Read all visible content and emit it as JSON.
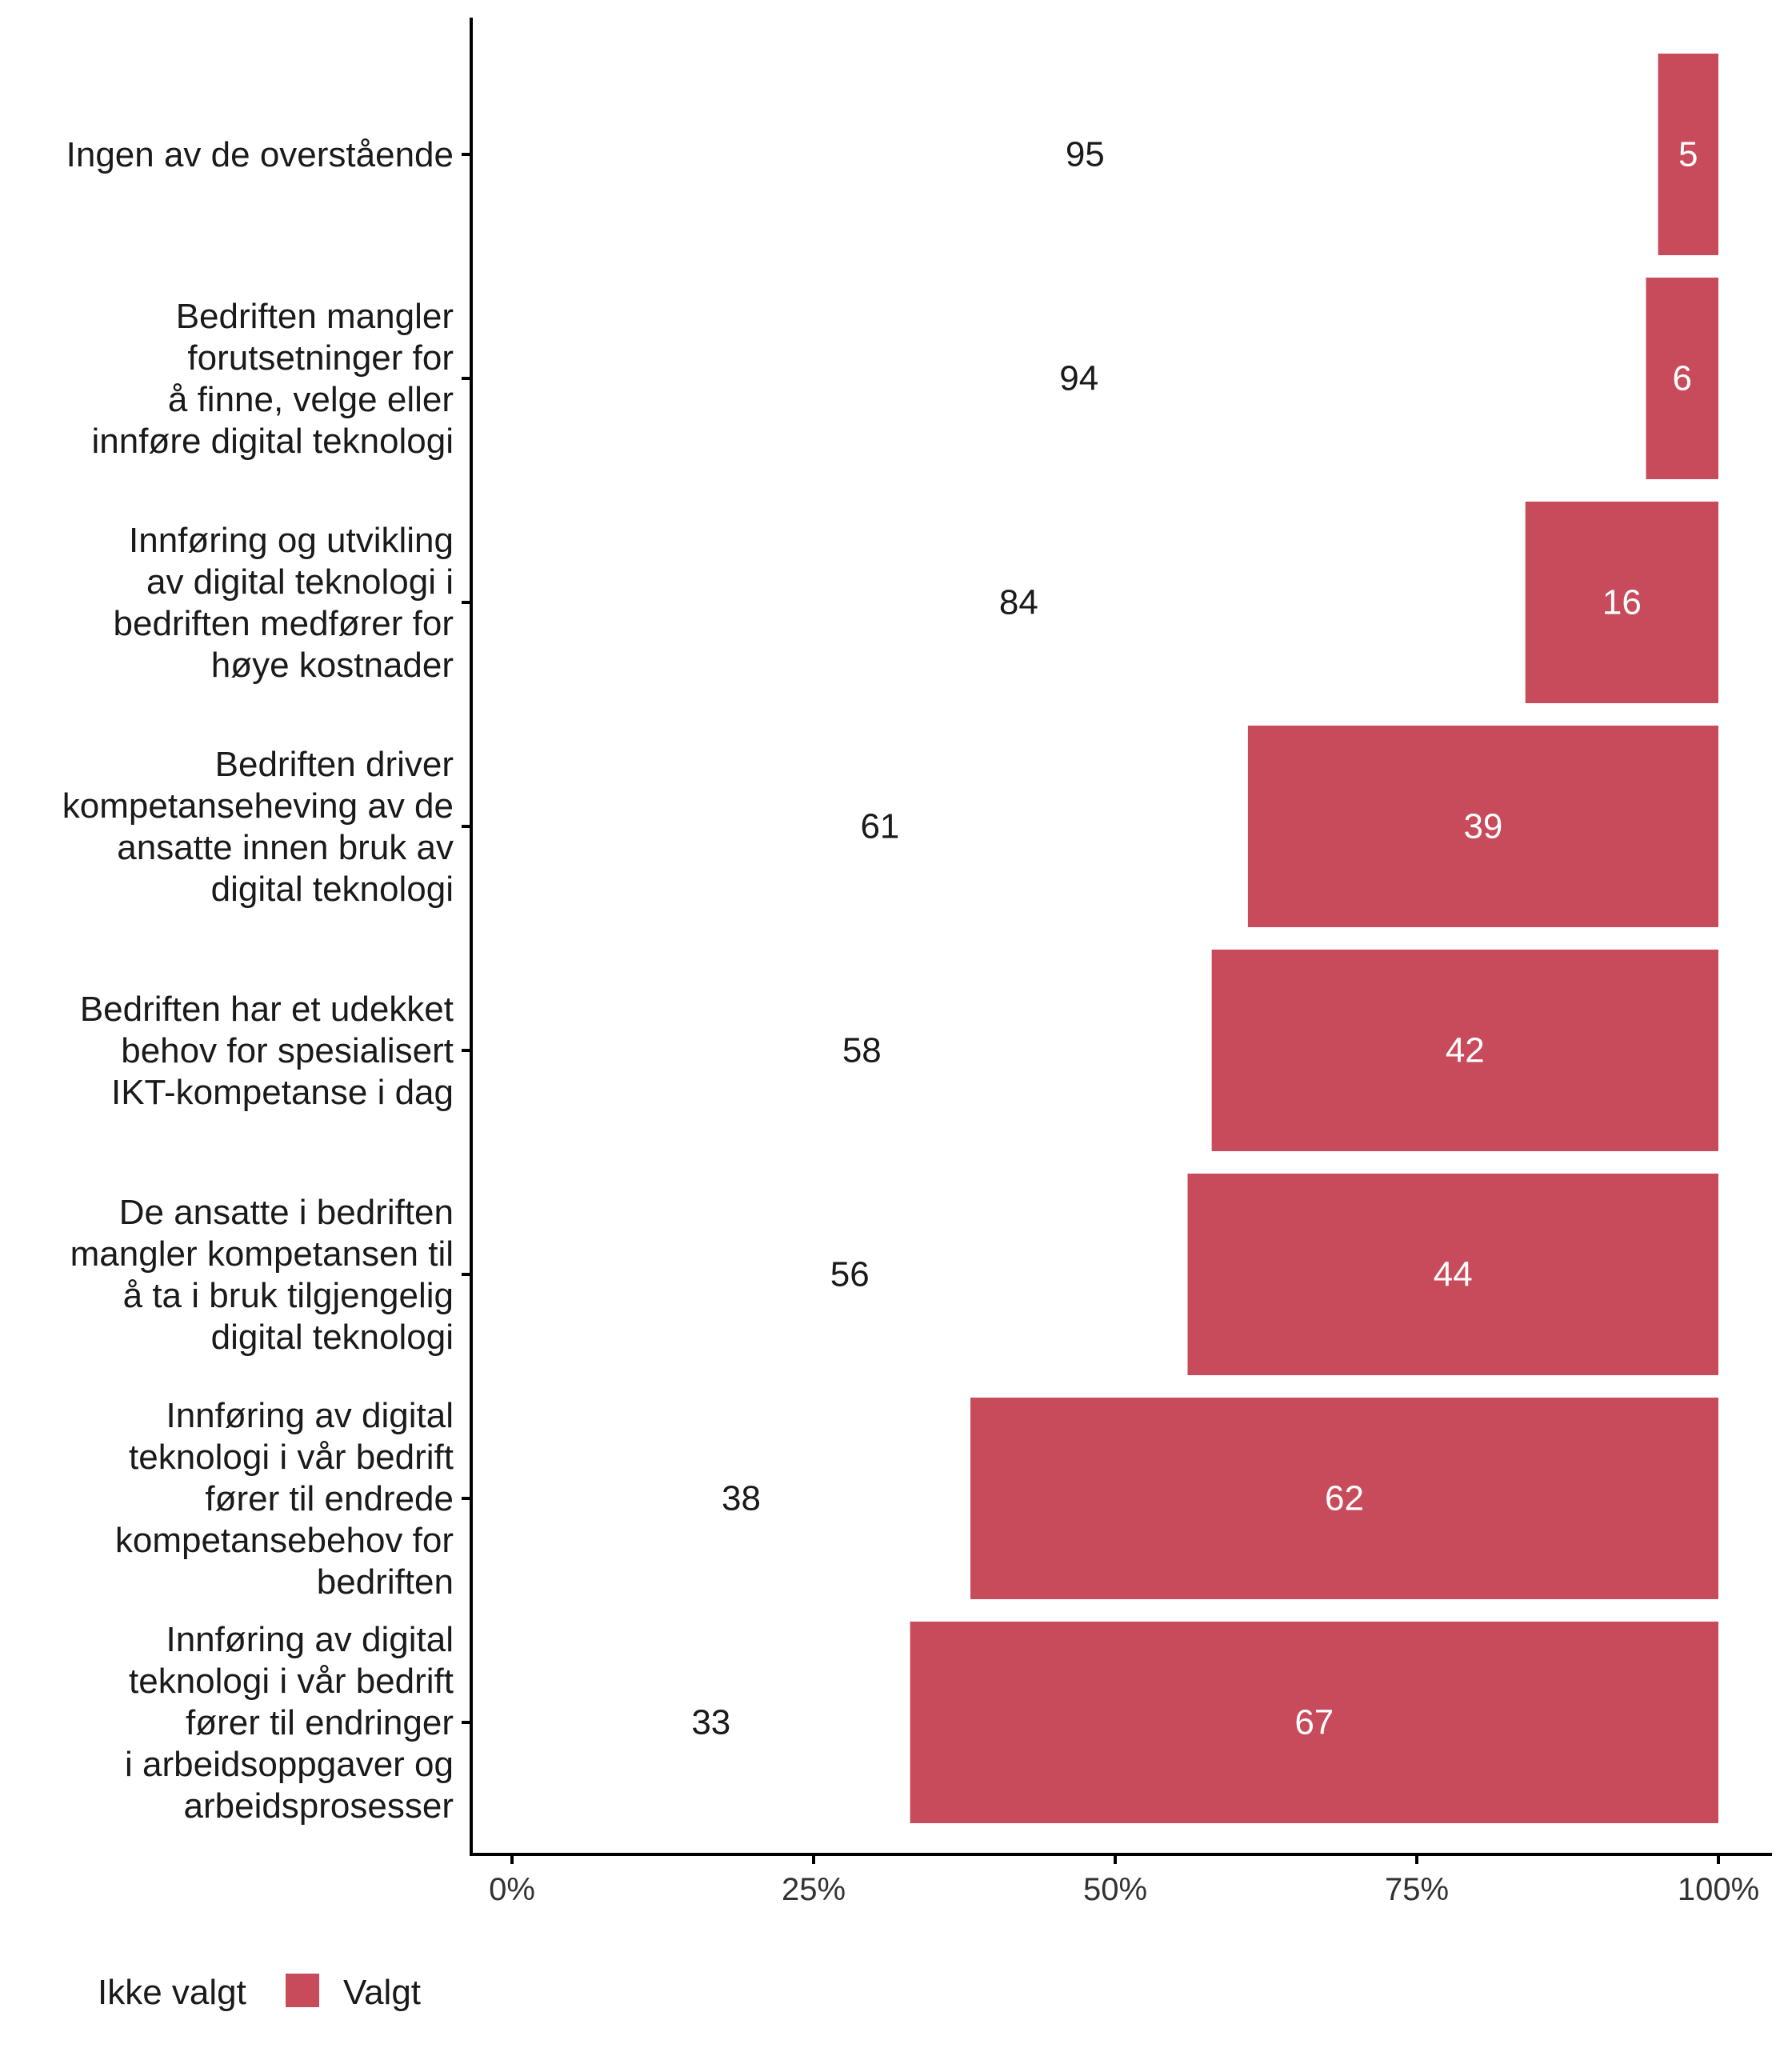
{
  "chart_data": {
    "type": "bar",
    "orientation": "horizontal",
    "stacked": true,
    "normalized": true,
    "categories": [
      [
        "Ingen av de overstående"
      ],
      [
        "Bedriften mangler",
        "forutsetninger for",
        "å finne, velge eller",
        "innføre digital teknologi"
      ],
      [
        "Innføring og utvikling",
        "av digital teknologi i",
        "bedriften medfører for",
        "høye kostnader"
      ],
      [
        "Bedriften driver",
        "kompetanseheving av de",
        "ansatte innen bruk av",
        "digital teknologi"
      ],
      [
        "Bedriften har et udekket",
        "behov for spesialisert",
        "IKT-kompetanse i dag"
      ],
      [
        "De ansatte i bedriften",
        "mangler kompetansen til",
        "å ta i bruk tilgjengelig",
        "digital teknologi"
      ],
      [
        "Innføring av digital",
        "teknologi i vår bedrift",
        "fører til endrede",
        "kompetansebehov for",
        "bedriften"
      ],
      [
        "Innføring av digital",
        "teknologi i vår bedrift",
        "fører til endringer",
        "i arbeidsoppgaver og",
        "arbeidsprosesser"
      ]
    ],
    "series": [
      {
        "name": "Ikke valgt",
        "color": "#ffffff",
        "label_color": "#1a1a1a",
        "values": [
          95,
          94,
          84,
          61,
          58,
          56,
          38,
          33
        ]
      },
      {
        "name": "Valgt",
        "color": "#c84b5b",
        "label_color": "#ffffff",
        "values": [
          5,
          6,
          16,
          39,
          42,
          44,
          62,
          67
        ]
      }
    ],
    "x_ticks": [
      "0%",
      "25%",
      "50%",
      "75%",
      "100%"
    ],
    "xlim": [
      0,
      100
    ],
    "xlabel": "",
    "ylabel": "",
    "grid": false,
    "legend": {
      "position": "bottom-left",
      "entries": [
        "Ikke valgt",
        "Valgt"
      ]
    }
  }
}
